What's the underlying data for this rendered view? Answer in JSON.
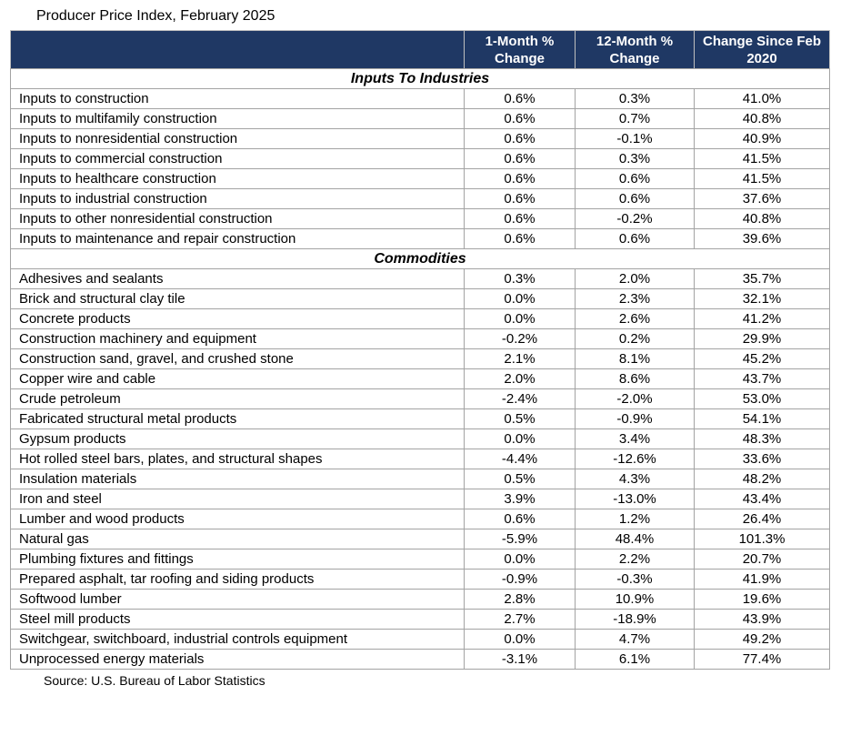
{
  "title": "Producer Price Index, February 2025",
  "source": "Source: U.S. Bureau of Labor Statistics",
  "colors": {
    "header_bg": "#1F3864",
    "header_text": "#ffffff",
    "grid_border": "#a3a3a3"
  },
  "chart_data": {
    "type": "table",
    "title": "Producer Price Index, February 2025",
    "columns": [
      "",
      "1-Month % Change",
      "12-Month % Change",
      "Change Since Feb 2020"
    ],
    "sections": [
      {
        "label": "Inputs To Industries",
        "rows": [
          {
            "name": "Inputs to construction",
            "m1": "0.6%",
            "m12": "0.3%",
            "since": "41.0%"
          },
          {
            "name": "Inputs to multifamily construction",
            "m1": "0.6%",
            "m12": "0.7%",
            "since": "40.8%"
          },
          {
            "name": "Inputs to nonresidential construction",
            "m1": "0.6%",
            "m12": "-0.1%",
            "since": "40.9%"
          },
          {
            "name": "Inputs to commercial construction",
            "m1": "0.6%",
            "m12": "0.3%",
            "since": "41.5%"
          },
          {
            "name": "Inputs to healthcare construction",
            "m1": "0.6%",
            "m12": "0.6%",
            "since": "41.5%"
          },
          {
            "name": "Inputs to industrial construction",
            "m1": "0.6%",
            "m12": "0.6%",
            "since": "37.6%"
          },
          {
            "name": "Inputs to other nonresidential construction",
            "m1": "0.6%",
            "m12": "-0.2%",
            "since": "40.8%"
          },
          {
            "name": "Inputs to maintenance and repair construction",
            "m1": "0.6%",
            "m12": "0.6%",
            "since": "39.6%"
          }
        ]
      },
      {
        "label": "Commodities",
        "rows": [
          {
            "name": "Adhesives and sealants",
            "m1": "0.3%",
            "m12": "2.0%",
            "since": "35.7%"
          },
          {
            "name": "Brick and structural clay tile",
            "m1": "0.0%",
            "m12": "2.3%",
            "since": "32.1%"
          },
          {
            "name": "Concrete products",
            "m1": "0.0%",
            "m12": "2.6%",
            "since": "41.2%"
          },
          {
            "name": "Construction machinery and equipment",
            "m1": "-0.2%",
            "m12": "0.2%",
            "since": "29.9%"
          },
          {
            "name": "Construction sand, gravel, and crushed stone",
            "m1": "2.1%",
            "m12": "8.1%",
            "since": "45.2%"
          },
          {
            "name": "Copper wire and cable",
            "m1": "2.0%",
            "m12": "8.6%",
            "since": "43.7%"
          },
          {
            "name": "Crude petroleum",
            "m1": "-2.4%",
            "m12": "-2.0%",
            "since": "53.0%"
          },
          {
            "name": "Fabricated structural metal products",
            "m1": "0.5%",
            "m12": "-0.9%",
            "since": "54.1%"
          },
          {
            "name": "Gypsum products",
            "m1": "0.0%",
            "m12": "3.4%",
            "since": "48.3%"
          },
          {
            "name": "Hot rolled steel bars, plates, and structural shapes",
            "m1": "-4.4%",
            "m12": "-12.6%",
            "since": "33.6%"
          },
          {
            "name": "Insulation materials",
            "m1": "0.5%",
            "m12": "4.3%",
            "since": "48.2%"
          },
          {
            "name": "Iron and steel",
            "m1": "3.9%",
            "m12": "-13.0%",
            "since": "43.4%"
          },
          {
            "name": "Lumber and wood products",
            "m1": "0.6%",
            "m12": "1.2%",
            "since": "26.4%"
          },
          {
            "name": "Natural gas",
            "m1": "-5.9%",
            "m12": "48.4%",
            "since": "101.3%"
          },
          {
            "name": "Plumbing fixtures and fittings",
            "m1": "0.0%",
            "m12": "2.2%",
            "since": "20.7%"
          },
          {
            "name": "Prepared asphalt, tar roofing and siding products",
            "m1": "-0.9%",
            "m12": "-0.3%",
            "since": "41.9%"
          },
          {
            "name": "Softwood lumber",
            "m1": "2.8%",
            "m12": "10.9%",
            "since": "19.6%"
          },
          {
            "name": "Steel mill products",
            "m1": "2.7%",
            "m12": "-18.9%",
            "since": "43.9%"
          },
          {
            "name": "Switchgear, switchboard, industrial controls equipment",
            "m1": "0.0%",
            "m12": "4.7%",
            "since": "49.2%"
          },
          {
            "name": "Unprocessed energy materials",
            "m1": "-3.1%",
            "m12": "6.1%",
            "since": "77.4%"
          }
        ]
      }
    ]
  }
}
